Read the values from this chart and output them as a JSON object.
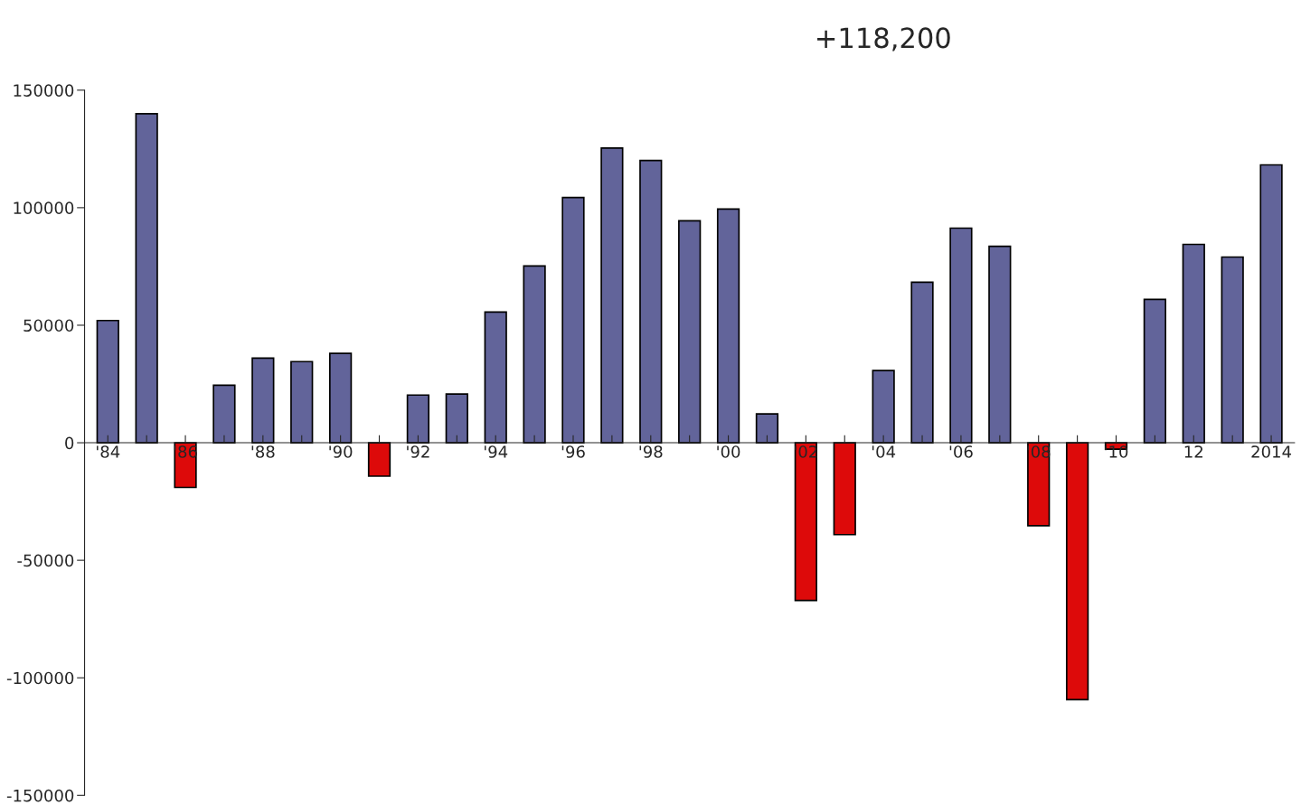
{
  "chart_data": {
    "type": "bar",
    "categories": [
      "'84",
      null,
      "'86",
      null,
      "'88",
      null,
      "'90",
      null,
      "'92",
      null,
      "'94",
      null,
      "'96",
      null,
      "'98",
      null,
      "'00",
      null,
      "'02",
      null,
      "'04",
      null,
      "'06",
      null,
      "'08",
      null,
      "'10",
      null,
      "12",
      null,
      "2014"
    ],
    "values": [
      52000,
      140000,
      -19000,
      24500,
      36000,
      34500,
      38000,
      -14200,
      20300,
      20700,
      55600,
      75200,
      104300,
      125400,
      120100,
      94400,
      99400,
      12300,
      -67100,
      -39100,
      30700,
      68300,
      91300,
      83600,
      -35300,
      -109300,
      -2700,
      61000,
      84400,
      79000,
      118200
    ],
    "colors": [
      "#62649a",
      "#62649a",
      "#dd0a0a",
      "#62649a",
      "#62649a",
      "#62649a",
      "#62649a",
      "#dd0a0a",
      "#62649a",
      "#62649a",
      "#62649a",
      "#62649a",
      "#62649a",
      "#62649a",
      "#62649a",
      "#62649a",
      "#62649a",
      "#62649a",
      "#dd0a0a",
      "#dd0a0a",
      "#62649a",
      "#62649a",
      "#62649a",
      "#62649a",
      "#dd0a0a",
      "#dd0a0a",
      "#dd0a0a",
      "#62649a",
      "#62649a",
      "#62649a",
      "#62649a"
    ],
    "ylim": [
      -150000,
      150000
    ],
    "yticks": [
      -150000,
      -100000,
      -50000,
      0,
      50000,
      100000,
      150000
    ],
    "grid": false,
    "annotations": [
      "+118,200"
    ]
  }
}
